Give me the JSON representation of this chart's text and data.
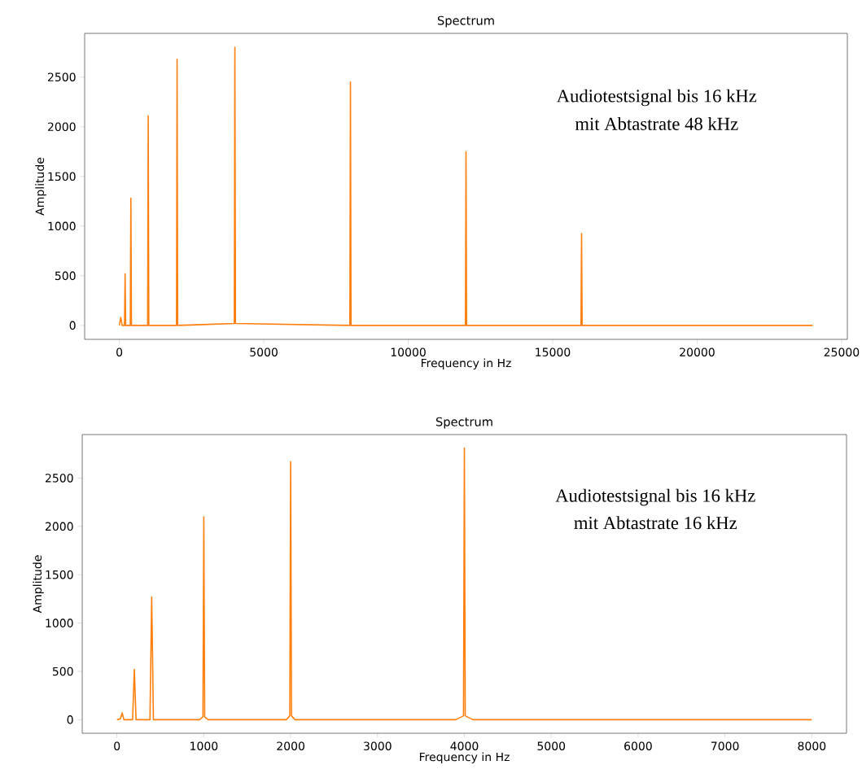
{
  "chart_data": [
    {
      "type": "line",
      "title": "Spectrum",
      "xlabel": "Frequency in Hz",
      "ylabel": "Amplitude",
      "annotations": [
        "Audiotestsignal bis 16 kHz",
        "mit Abtastrate 48 kHz"
      ],
      "xlim": [
        -1200,
        25200
      ],
      "ylim": [
        -140,
        2940
      ],
      "xticks": [
        0,
        5000,
        10000,
        15000,
        20000,
        25000
      ],
      "yticks": [
        0,
        500,
        1000,
        1500,
        2000,
        2500
      ],
      "series": [
        {
          "color": "#ff7f0e",
          "x": [
            0,
            50,
            100,
            180,
            200,
            220,
            380,
            400,
            420,
            980,
            1000,
            1020,
            1980,
            2000,
            2020,
            3980,
            4000,
            4020,
            7980,
            8000,
            8020,
            11980,
            12000,
            12020,
            15980,
            16000,
            16020,
            24000
          ],
          "values": [
            0,
            80,
            0,
            0,
            520,
            0,
            0,
            1280,
            0,
            0,
            2110,
            0,
            0,
            2680,
            0,
            20,
            2800,
            20,
            0,
            2450,
            0,
            0,
            1750,
            0,
            0,
            925,
            0,
            0
          ]
        }
      ]
    },
    {
      "type": "line",
      "title": "Spectrum",
      "xlabel": "Frequency in Hz",
      "ylabel": "Amplitude",
      "annotations": [
        "Audiotestsignal bis 16 kHz",
        "mit Abtastrate 16 kHz"
      ],
      "xlim": [
        -400,
        8400
      ],
      "ylim": [
        -140,
        2950
      ],
      "xticks": [
        0,
        1000,
        2000,
        3000,
        4000,
        5000,
        6000,
        7000,
        8000
      ],
      "yticks": [
        0,
        500,
        1000,
        1500,
        2000,
        2500
      ],
      "series": [
        {
          "color": "#ff7f0e",
          "x": [
            0,
            40,
            60,
            80,
            180,
            200,
            220,
            380,
            400,
            420,
            950,
            990,
            1000,
            1010,
            1050,
            1950,
            1990,
            2000,
            2010,
            2050,
            3900,
            3990,
            4000,
            4010,
            4100,
            8000
          ],
          "values": [
            0,
            10,
            70,
            0,
            0,
            520,
            0,
            0,
            1270,
            0,
            0,
            30,
            2100,
            30,
            0,
            0,
            40,
            2670,
            40,
            0,
            0,
            40,
            2810,
            40,
            0,
            0
          ]
        }
      ]
    }
  ]
}
